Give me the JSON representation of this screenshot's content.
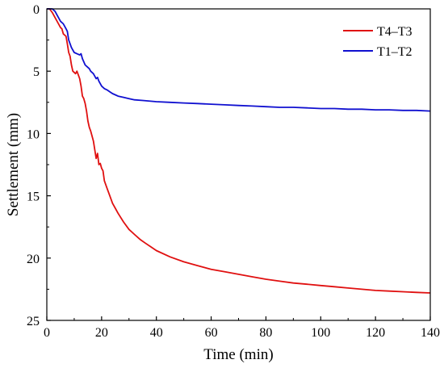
{
  "chart_data": {
    "type": "line",
    "xlabel": "Time (min)",
    "ylabel": "Settlement (mm)",
    "xlim": [
      0,
      140
    ],
    "ylim": [
      0,
      25
    ],
    "y_inverted": true,
    "grid": false,
    "legend_position": "top-right",
    "x_ticks": [
      0,
      20,
      40,
      60,
      80,
      100,
      120,
      140
    ],
    "y_ticks": [
      0,
      5,
      10,
      15,
      20,
      25
    ],
    "series": [
      {
        "name": "T4–T3",
        "color": "#e01010",
        "x": [
          0,
          1,
          2,
          3,
          4,
          5,
          5.5,
          6,
          7,
          7.5,
          8,
          8.5,
          9,
          9.5,
          10,
          10.5,
          11,
          11.5,
          12,
          12.5,
          13,
          13.5,
          14,
          14.5,
          15,
          15.5,
          16,
          16.5,
          17,
          17.5,
          18,
          18.5,
          19,
          19.5,
          20,
          20.5,
          21,
          22,
          23,
          24,
          25,
          26,
          28,
          30,
          32,
          34,
          36,
          38,
          40,
          45,
          50,
          55,
          60,
          65,
          70,
          75,
          80,
          85,
          90,
          95,
          100,
          105,
          110,
          115,
          120,
          125,
          130,
          135,
          140
        ],
        "y": [
          0,
          0,
          0.3,
          0.7,
          1.1,
          1.5,
          1.6,
          2.0,
          2.2,
          2.8,
          3.5,
          3.8,
          4.5,
          5.0,
          5.1,
          5.2,
          5.0,
          5.3,
          5.6,
          6.2,
          7.0,
          7.2,
          7.6,
          8.2,
          9.0,
          9.5,
          9.8,
          10.2,
          10.6,
          11.3,
          12.0,
          11.6,
          12.5,
          12.4,
          12.8,
          13.0,
          13.8,
          14.4,
          15.0,
          15.6,
          16.0,
          16.4,
          17.1,
          17.7,
          18.1,
          18.5,
          18.8,
          19.1,
          19.4,
          19.9,
          20.3,
          20.6,
          20.9,
          21.1,
          21.3,
          21.5,
          21.7,
          21.85,
          22.0,
          22.1,
          22.2,
          22.3,
          22.4,
          22.5,
          22.6,
          22.65,
          22.7,
          22.75,
          22.8
        ]
      },
      {
        "name": "T1–T2",
        "color": "#1010d0",
        "x": [
          0,
          1,
          2,
          3,
          4,
          5,
          6,
          6.5,
          7,
          7.5,
          8,
          9,
          10,
          11,
          12,
          12.5,
          13,
          14,
          15,
          15.5,
          16,
          17,
          18,
          18.5,
          19,
          20,
          21,
          22,
          23,
          24,
          25,
          26,
          28,
          30,
          32,
          35,
          40,
          45,
          50,
          55,
          60,
          65,
          70,
          75,
          80,
          85,
          90,
          95,
          100,
          105,
          110,
          115,
          120,
          125,
          130,
          135,
          140
        ],
        "y": [
          0,
          0,
          0,
          0.2,
          0.6,
          1.0,
          1.2,
          1.4,
          1.6,
          1.8,
          2.5,
          3.1,
          3.5,
          3.6,
          3.7,
          3.6,
          4.0,
          4.5,
          4.7,
          4.8,
          5.0,
          5.2,
          5.6,
          5.5,
          5.8,
          6.2,
          6.4,
          6.5,
          6.65,
          6.8,
          6.9,
          7.0,
          7.1,
          7.2,
          7.3,
          7.35,
          7.45,
          7.5,
          7.55,
          7.6,
          7.65,
          7.7,
          7.75,
          7.8,
          7.85,
          7.9,
          7.9,
          7.95,
          8.0,
          8.0,
          8.05,
          8.05,
          8.1,
          8.1,
          8.15,
          8.15,
          8.2
        ]
      }
    ]
  }
}
